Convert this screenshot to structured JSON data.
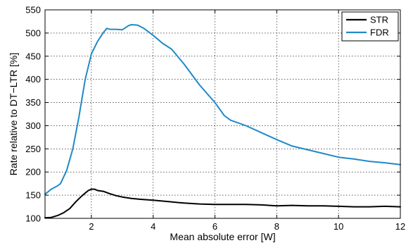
{
  "chart_data": {
    "type": "line",
    "xlabel": "Mean absolute error [W]",
    "ylabel": "Rate relative to DT−LTR [%]",
    "xlim": [
      0.5,
      12
    ],
    "ylim": [
      100,
      550
    ],
    "xticks": [
      2,
      4,
      6,
      8,
      10,
      12
    ],
    "yticks": [
      100,
      150,
      200,
      250,
      300,
      350,
      400,
      450,
      500,
      550
    ],
    "grid": true,
    "legend_position": "top-right",
    "series": [
      {
        "name": "STR",
        "color": "#000000",
        "x": [
          0.5,
          0.7,
          0.9,
          1.1,
          1.3,
          1.5,
          1.7,
          1.9,
          2.0,
          2.1,
          2.2,
          2.4,
          2.6,
          2.8,
          3.0,
          3.3,
          3.6,
          4.0,
          4.5,
          5.0,
          5.5,
          6.0,
          6.5,
          7.0,
          7.5,
          8.0,
          8.5,
          9.0,
          9.5,
          10.0,
          10.5,
          11.0,
          11.5,
          12.0
        ],
        "values": [
          101,
          102,
          106,
          112,
          121,
          136,
          149,
          160,
          163,
          163,
          160,
          158,
          153,
          149,
          146,
          143,
          141,
          139,
          136,
          133,
          131,
          130,
          130,
          130,
          129,
          127,
          128,
          127,
          127,
          126,
          125,
          125,
          126,
          125
        ]
      },
      {
        "name": "FDR",
        "color": "#1f8ac8",
        "x": [
          0.5,
          0.7,
          0.9,
          1.0,
          1.2,
          1.4,
          1.6,
          1.8,
          2.0,
          2.2,
          2.4,
          2.5,
          2.6,
          2.8,
          3.0,
          3.2,
          3.3,
          3.5,
          3.7,
          4.0,
          4.3,
          4.6,
          5.0,
          5.5,
          6.0,
          6.3,
          6.5,
          7.0,
          7.5,
          8.0,
          8.5,
          9.0,
          9.5,
          10.0,
          10.5,
          11.0,
          11.5,
          12.0
        ],
        "values": [
          152,
          163,
          170,
          175,
          203,
          250,
          320,
          400,
          455,
          482,
          502,
          510,
          508,
          508,
          507,
          516,
          518,
          517,
          510,
          495,
          478,
          465,
          433,
          388,
          350,
          322,
          312,
          300,
          285,
          270,
          256,
          248,
          240,
          232,
          228,
          223,
          220,
          216
        ]
      }
    ]
  }
}
